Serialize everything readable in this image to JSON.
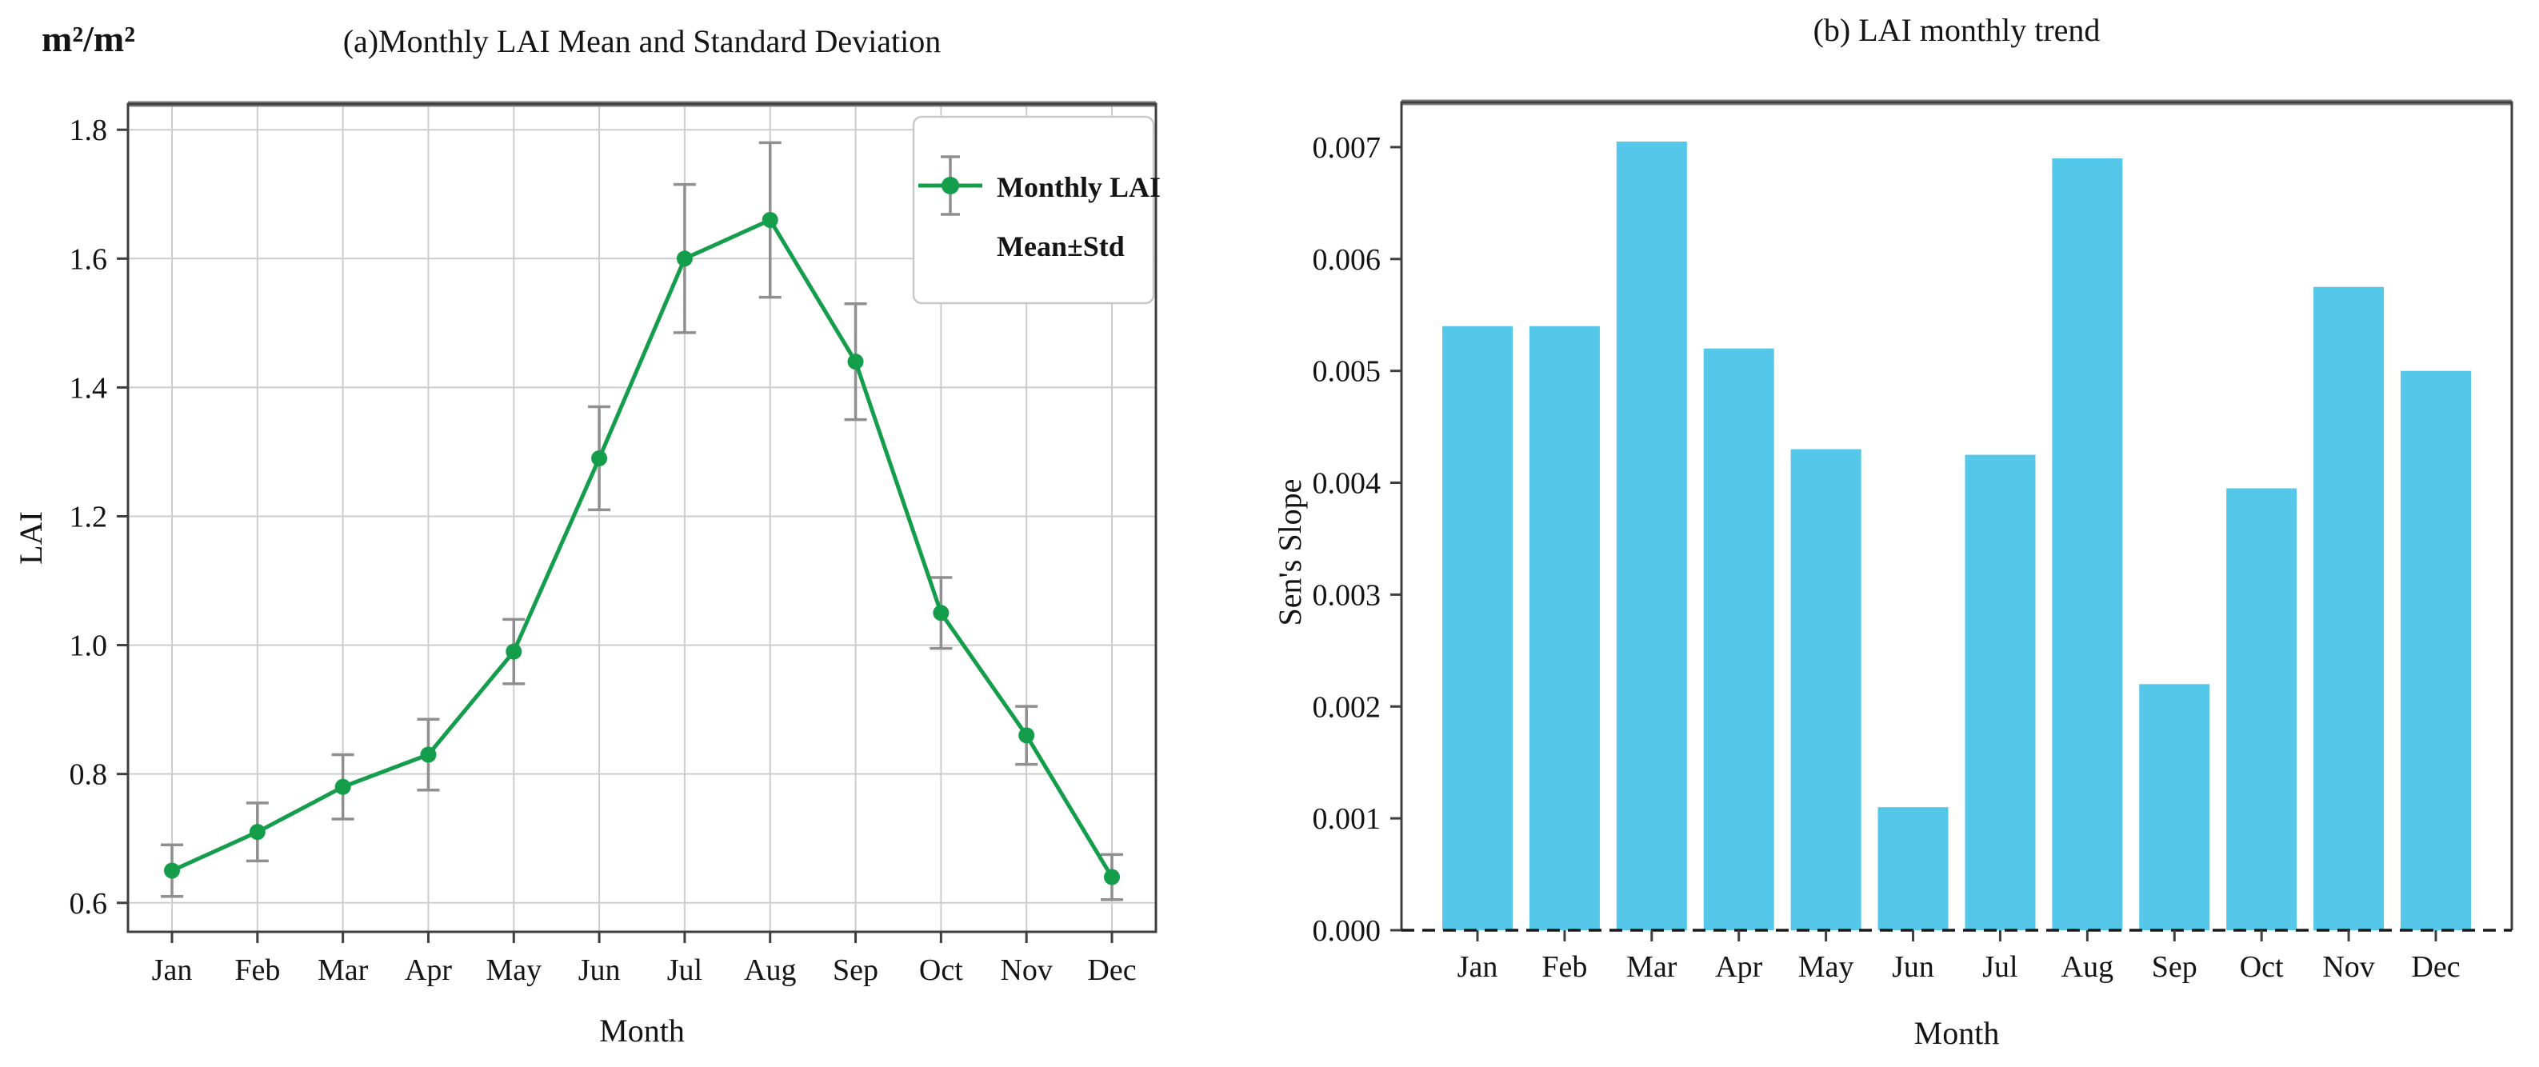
{
  "panel_a": {
    "title": "(a)Monthly LAI Mean and Standard Deviation",
    "unit_label": "m²/m²",
    "ylabel": "LAI",
    "xlabel": "Month",
    "legend_lines": [
      "Monthly LAI",
      "Mean±Std"
    ]
  },
  "panel_b": {
    "title": "(b) LAI monthly trend",
    "ylabel": "Sen's Slope",
    "xlabel": "Month"
  },
  "colors": {
    "line_green": "#149E4C",
    "error_bar_gray": "#8F8F8F",
    "bar_cyan": "#55C7E8",
    "axis_dark": "#3F3F3F",
    "axis_top_gray": "#7D7D7D",
    "grid_gray": "#CDCDCD",
    "legend_border": "#C9C9C9",
    "zero_line_black": "#1A1A1A",
    "text_black": "#141414"
  },
  "chart_data": [
    {
      "type": "line",
      "title": "(a)Monthly LAI Mean and Standard Deviation",
      "unit": "m²/m²",
      "xlabel": "Month",
      "ylabel": "LAI",
      "grid": true,
      "legend": [
        "Monthly LAI",
        "Mean±Std"
      ],
      "legend_position": "top-right",
      "categories": [
        "Jan",
        "Feb",
        "Mar",
        "Apr",
        "May",
        "Jun",
        "Jul",
        "Aug",
        "Sep",
        "Oct",
        "Nov",
        "Dec"
      ],
      "series": [
        {
          "name": "Monthly LAI Mean±Std",
          "values": [
            0.65,
            0.71,
            0.78,
            0.83,
            0.99,
            1.29,
            1.6,
            1.66,
            1.44,
            1.05,
            0.86,
            0.64
          ],
          "std": [
            0.04,
            0.045,
            0.05,
            0.055,
            0.05,
            0.08,
            0.115,
            0.12,
            0.09,
            0.055,
            0.045,
            0.035
          ]
        }
      ],
      "ylim": [
        0.555,
        1.84
      ],
      "ytick_values": [
        0.6,
        0.8,
        1.0,
        1.2,
        1.4,
        1.6,
        1.8
      ],
      "ytick_labels": [
        "0.6",
        "0.8",
        "1.0",
        "1.2",
        "1.4",
        "1.6",
        "1.8"
      ]
    },
    {
      "type": "bar",
      "title": "(b) LAI monthly trend",
      "xlabel": "Month",
      "ylabel": "Sen's Slope",
      "grid": false,
      "baseline_dashed": true,
      "categories": [
        "Jan",
        "Feb",
        "Mar",
        "Apr",
        "May",
        "Jun",
        "Jul",
        "Aug",
        "Sep",
        "Oct",
        "Nov",
        "Dec"
      ],
      "values": [
        0.0054,
        0.0054,
        0.00705,
        0.0052,
        0.0043,
        0.0011,
        0.00425,
        0.0069,
        0.0022,
        0.00395,
        0.00575,
        0.005
      ],
      "ylim": [
        0,
        0.0074
      ],
      "ytick_values": [
        0.0,
        0.001,
        0.002,
        0.003,
        0.004,
        0.005,
        0.006,
        0.007
      ],
      "ytick_labels": [
        "0.000",
        "0.001",
        "0.002",
        "0.003",
        "0.004",
        "0.005",
        "0.006",
        "0.007"
      ]
    }
  ]
}
